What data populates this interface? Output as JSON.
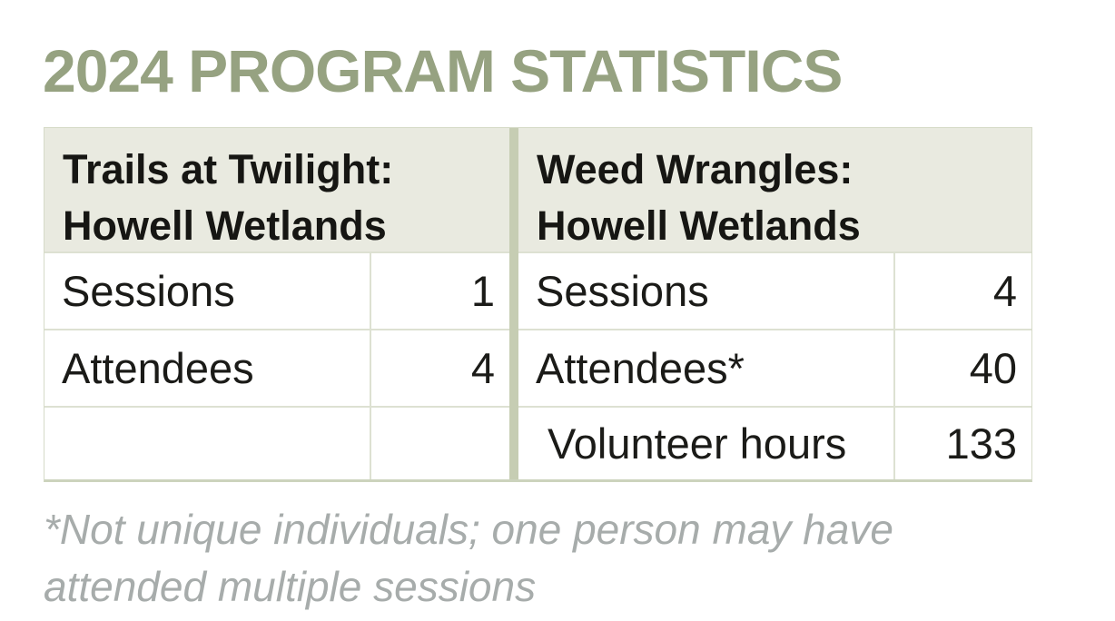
{
  "page": {
    "title": "2024 PROGRAM STATISTICS",
    "footnote": "*Not unique individuals; one person may have attended multiple sessions"
  },
  "colors": {
    "title_green": "#96a281",
    "header_background": "#e9eae0",
    "divider_strip": "#c6cdb3",
    "grid_line": "#dde1d2",
    "body_text": "#1b1b18",
    "footnote_gray": "#a7acab",
    "page_background": "#ffffff"
  },
  "tables": [
    {
      "title_line1": "Trails at Twilight:",
      "title_line2": "Howell Wetlands",
      "rows": [
        {
          "label": "Sessions",
          "value": "1"
        },
        {
          "label": "Attendees",
          "value": "4"
        },
        {
          "label": "",
          "value": ""
        }
      ]
    },
    {
      "title_line1": "Weed Wrangles:",
      "title_line2": "Howell Wetlands",
      "rows": [
        {
          "label": "Sessions",
          "value": "4"
        },
        {
          "label": "Attendees*",
          "value": "40"
        },
        {
          "label": "Volunteer hours",
          "value": "133"
        }
      ]
    }
  ]
}
